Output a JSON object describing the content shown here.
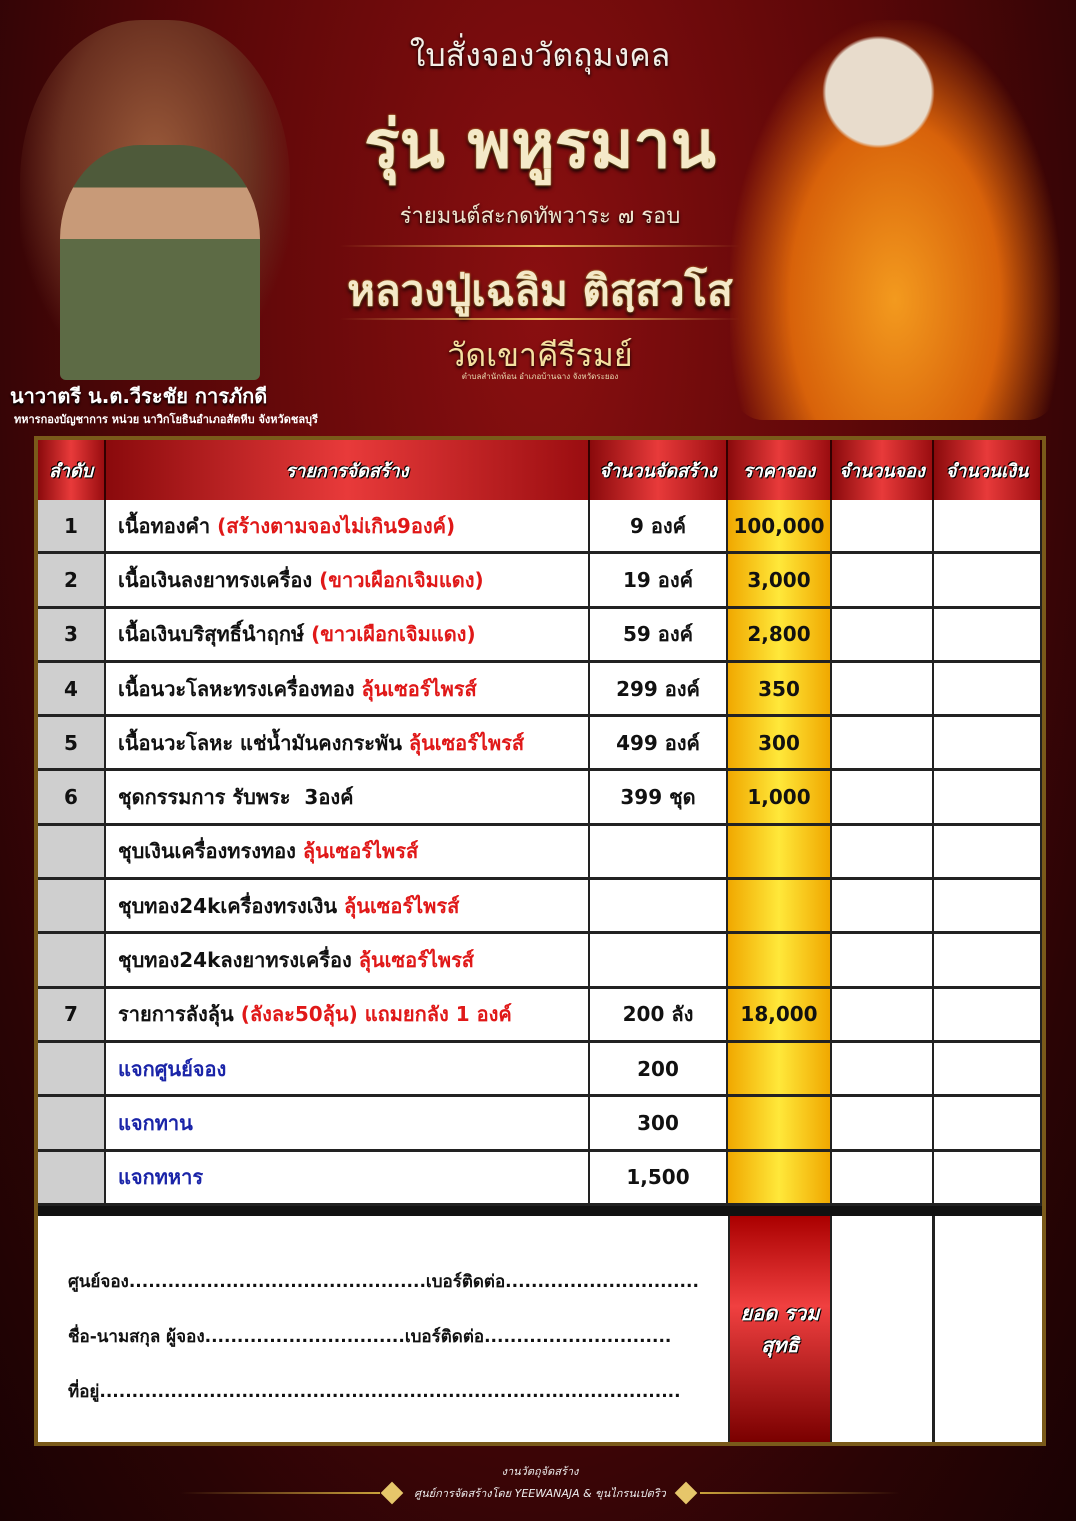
{
  "header": {
    "order_form_title": "ใบสั่งจองวัตถุมงคล",
    "edition": "รุ่น พหูรมาน",
    "subtitle": "ร่ายมนต์สะกดทัพวาระ ๗ รอบ",
    "monk_name": "หลวงปู่เฉลิม ติสฺสวโส",
    "temple": "วัดเขาคีรีรมย์",
    "temple_location": "ตำบลสำนักท้อน อำเภอบ้านฉาง จังหวัดระยอง",
    "sponsor_name": "นาวาตรี น.ต.วีระชัย การภักดี",
    "sponsor_unit": "ทหารกองบัญชาการ หน่วย นาวิกโยธินอำเภอสัตหีบ จังหวัดชลบุรี"
  },
  "table": {
    "columns": [
      "ลำดับ",
      "รายการจัดสร้าง",
      "จำนวนจัดสร้าง",
      "ราคาจอง",
      "จำนวนจอง",
      "จำนวนเงิน"
    ],
    "rows": [
      {
        "no": "1",
        "item": "เนื้อทองคำ ",
        "note": "(สร้างตามจองไม่เกิน9องค์)",
        "note_color": "red",
        "qty": "9 องค์",
        "price": "100,000"
      },
      {
        "no": "2",
        "item": "เนื้อเงินลงยาทรงเครื่อง ",
        "note": "(ขาวเผือกเจิมแดง)",
        "note_color": "red",
        "qty": "19 องค์",
        "price": "3,000"
      },
      {
        "no": "3",
        "item": "เนื้อเงินบริสุทธิ์นำฤกษ์ ",
        "note": "(ขาวเผือกเจิมแดง)",
        "note_color": "red",
        "qty": "59 องค์",
        "price": "2,800"
      },
      {
        "no": "4",
        "item": "เนื้อนวะโลหะทรงเครื่องทอง ",
        "note": "ลุ้นเซอร์ไพรส์",
        "note_color": "red",
        "qty": "299 องค์",
        "price": "350"
      },
      {
        "no": "5",
        "item": "เนื้อนวะโลหะ แช่น้ำมันคงกระพัน ",
        "note": "ลุ้นเซอร์ไพรส์",
        "note_color": "red",
        "qty": "499 องค์",
        "price": "300"
      },
      {
        "no": "6",
        "item": "ชุดกรรมการ รับพระ  3องค์",
        "note": "",
        "note_color": "red",
        "qty": "399 ชุด",
        "price": "1,000"
      },
      {
        "no": "",
        "item": "ชุบเงินเครื่องทรงทอง ",
        "note": "ลุ้นเซอร์ไพรส์",
        "note_color": "red",
        "qty": "",
        "price": ""
      },
      {
        "no": "",
        "item": "ชุบทอง24kเครื่องทรงเงิน ",
        "note": "ลุ้นเซอร์ไพรส์",
        "note_color": "red",
        "qty": "",
        "price": ""
      },
      {
        "no": "",
        "item": "ชุบทอง24kลงยาทรงเครื่อง ",
        "note": "ลุ้นเซอร์ไพรส์",
        "note_color": "red",
        "qty": "",
        "price": ""
      },
      {
        "no": "7",
        "item": "รายการลังลุ้น ",
        "note": "(ลังละ50ลุ้น) แถมยกลัง 1 องค์",
        "note_color": "red",
        "qty": "200 ลัง",
        "price": "18,000"
      },
      {
        "no": "",
        "item": "",
        "note": "แจกศูนย์จอง",
        "note_color": "blue",
        "qty": "200",
        "price": ""
      },
      {
        "no": "",
        "item": "",
        "note": "แจกทาน",
        "note_color": "blue",
        "qty": "300",
        "price": ""
      },
      {
        "no": "",
        "item": "",
        "note": "แจกทหาร",
        "note_color": "blue",
        "qty": "1,500",
        "price": ""
      }
    ]
  },
  "form": {
    "center_line": "ศูนย์จอง..............................................เบอร์ติดต่อ..............................",
    "name_line": "ชื่อ-นามสกุล ผู้จอง...............................เบอร์ติดต่อ.............................",
    "address_line": "ที่อยู่..........................................................................................",
    "total_label": "ยอด รวมสุทธิ"
  },
  "footer": {
    "line1": "งานวัตถุจัดสร้าง",
    "line2": "ศูนย์การจัดสร้างโดย  YEEWANAJA & ขุนไกรนเปตริว"
  },
  "colors": {
    "header_red": "#e83a3a",
    "price_gold": "#ffe83a",
    "note_red": "#e01818",
    "note_blue": "#1a24a8",
    "background": "#5a0708"
  }
}
